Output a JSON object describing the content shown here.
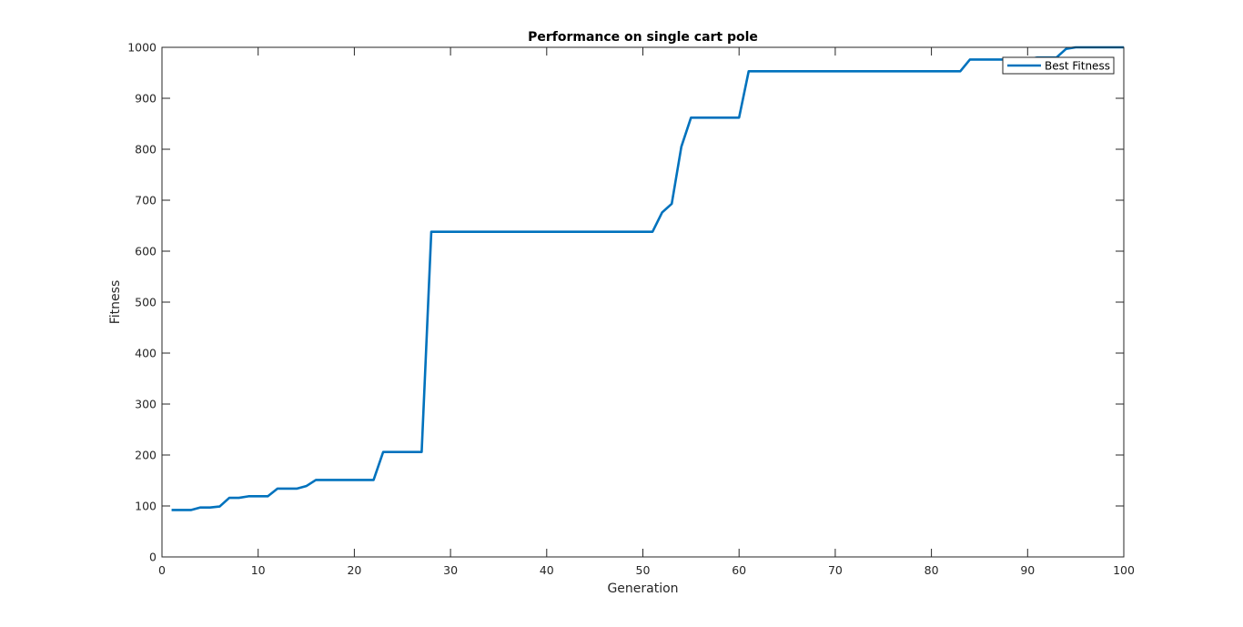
{
  "chart_data": {
    "type": "line",
    "title": "Performance on single cart pole",
    "xlabel": "Generation",
    "ylabel": "Fitness",
    "xlim": [
      0,
      100
    ],
    "ylim": [
      0,
      1000
    ],
    "xticks": [
      0,
      10,
      20,
      30,
      40,
      50,
      60,
      70,
      80,
      90,
      100
    ],
    "yticks": [
      0,
      100,
      200,
      300,
      400,
      500,
      600,
      700,
      800,
      900,
      1000
    ],
    "grid": false,
    "legend_position": "top-right",
    "series": [
      {
        "name": "Best Fitness",
        "color": "#0072BD",
        "x": [
          1,
          3,
          4,
          5,
          6,
          7,
          8,
          9,
          10,
          11,
          12,
          14,
          15,
          16,
          22,
          23,
          27,
          28,
          51,
          52,
          53,
          54,
          55,
          60,
          61,
          83,
          84,
          90,
          91,
          93,
          94,
          95,
          100
        ],
        "y": [
          92,
          92,
          97,
          97,
          99,
          116,
          116,
          119,
          119,
          119,
          134,
          134,
          139,
          151,
          151,
          206,
          206,
          638,
          638,
          676,
          693,
          805,
          862,
          862,
          953,
          953,
          976,
          976,
          980,
          980,
          997,
          1000,
          1000
        ]
      }
    ]
  }
}
